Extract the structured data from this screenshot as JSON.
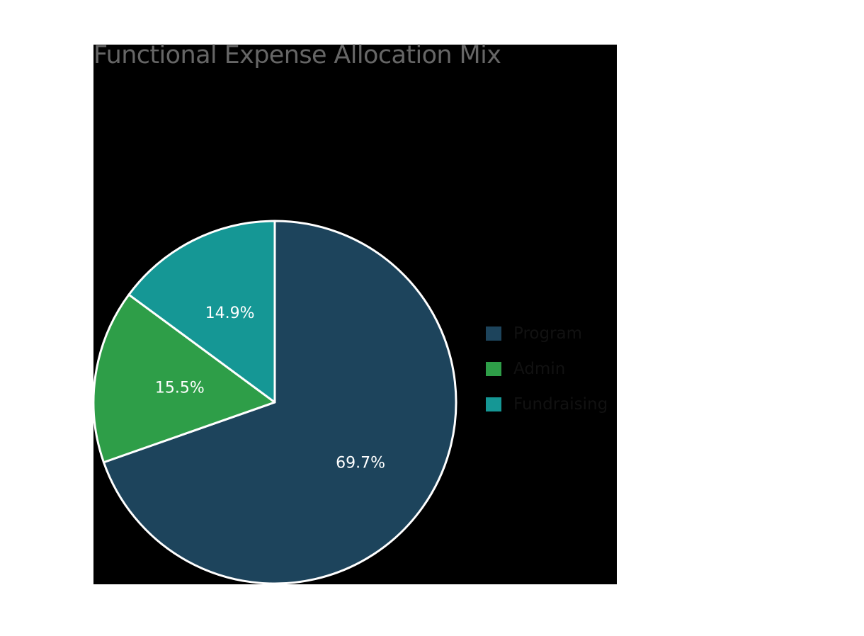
{
  "chart_data": {
    "type": "pie",
    "title": "Functional Expense Allocation Mix",
    "categories": [
      "Program",
      "Admin",
      "Fundraising"
    ],
    "values": [
      69.7,
      15.5,
      14.9
    ],
    "labels": [
      "69.7%",
      "15.5%",
      "14.9%"
    ],
    "colors": [
      "#1d445c",
      "#2e9e48",
      "#159795"
    ],
    "start_angle": "top (12 o'clock), clockwise",
    "legend_position": "right"
  },
  "title": "Functional Expense Allocation Mix",
  "legend": [
    {
      "label": "Program",
      "color": "#1d445c"
    },
    {
      "label": "Admin",
      "color": "#2e9e48"
    },
    {
      "label": "Fundraising",
      "color": "#159795"
    }
  ],
  "colors": {
    "background": "#ffffff",
    "plot_background": "#000000",
    "title": "#666666",
    "slice_border": "#ffffff"
  }
}
